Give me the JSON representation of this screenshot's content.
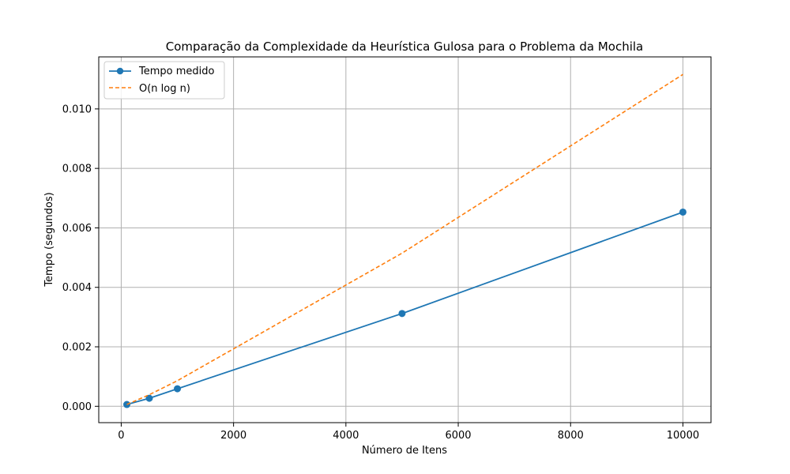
{
  "chart_data": {
    "type": "line",
    "title": "Comparação da Complexidade da Heurística Gulosa para o Problema da Mochila",
    "xlabel": "Número de Itens",
    "ylabel": "Tempo (segundos)",
    "xlim": [
      -400,
      10500
    ],
    "ylim": [
      -0.00055,
      0.01175
    ],
    "xticks": [
      0,
      2000,
      4000,
      6000,
      8000,
      10000
    ],
    "xtick_labels": [
      "0",
      "2000",
      "4000",
      "6000",
      "8000",
      "10000"
    ],
    "yticks": [
      0.0,
      0.002,
      0.004,
      0.006,
      0.008,
      0.01
    ],
    "ytick_labels": [
      "0.000",
      "0.002",
      "0.004",
      "0.006",
      "0.008",
      "0.010"
    ],
    "grid": true,
    "legend": "top-left",
    "series": [
      {
        "name": "Tempo medido",
        "color": "#1f77b4",
        "style": "solid",
        "marker": "circle",
        "x": [
          100,
          500,
          1000,
          5000,
          10000
        ],
        "y": [
          6e-05,
          0.00027,
          0.00059,
          0.00312,
          0.00653
        ]
      },
      {
        "name": "O(n log n)",
        "color": "#ff7f0e",
        "style": "dashed",
        "marker": "none",
        "x": [
          100,
          500,
          1000,
          5000,
          10000
        ],
        "y": [
          6e-05,
          0.00039,
          0.00086,
          0.00515,
          0.01116
        ]
      }
    ]
  }
}
